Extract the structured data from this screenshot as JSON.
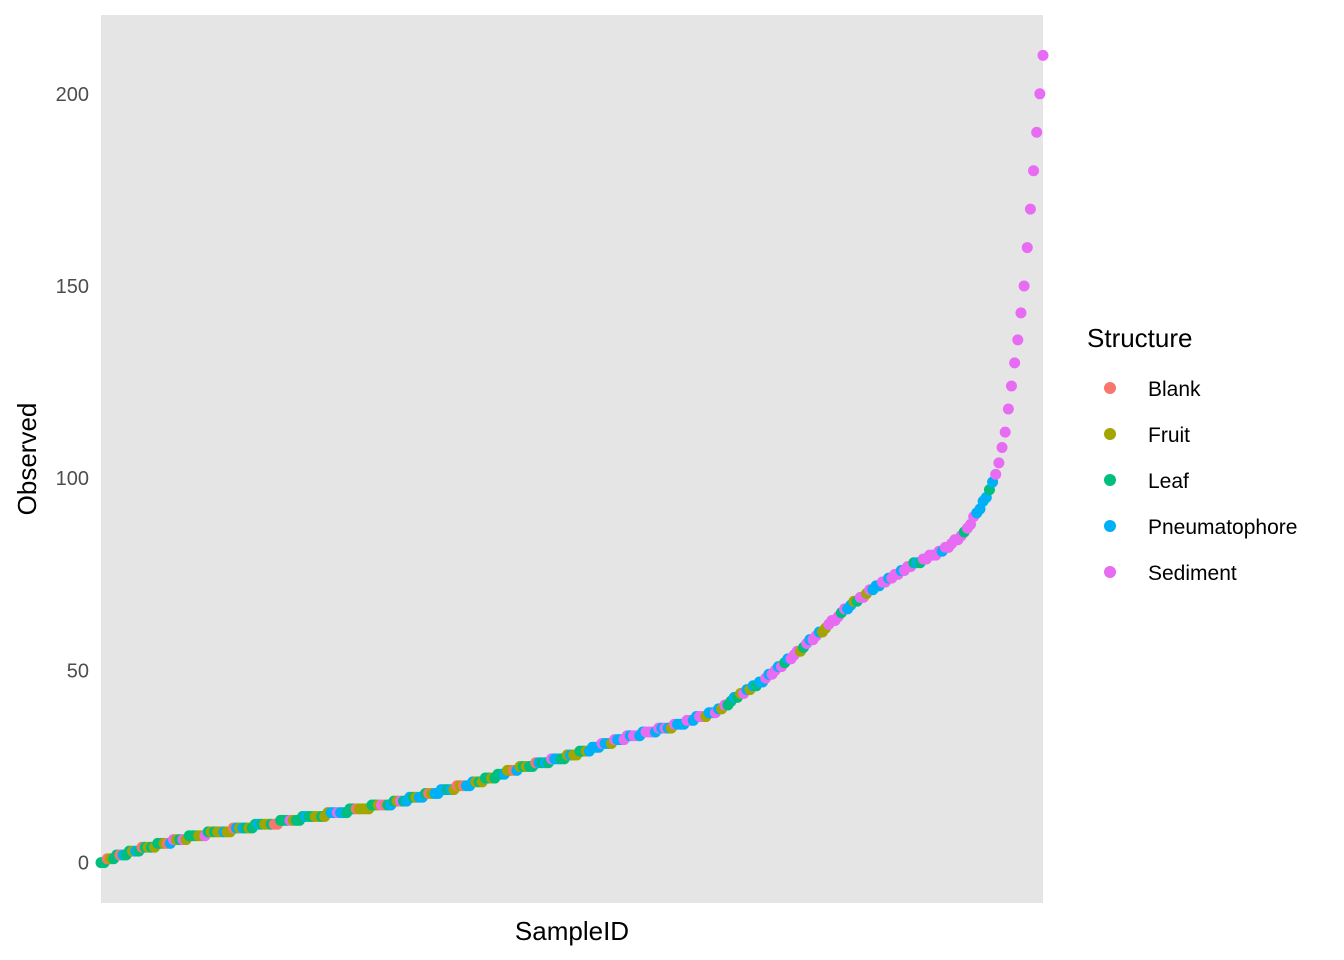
{
  "chart_data": {
    "type": "scatter",
    "title": "",
    "xlabel": "SampleID",
    "ylabel": "Observed",
    "ylim": [
      -10.5,
      220.5
    ],
    "yticks": [
      0,
      50,
      100,
      150,
      200
    ],
    "grid": false,
    "background": "#e5e5e5",
    "legend": {
      "title": "Structure",
      "position": "right",
      "entries": [
        {
          "name": "Blank",
          "color": "#f8766d"
        },
        {
          "name": "Fruit",
          "color": "#a3a500"
        },
        {
          "name": "Leaf",
          "color": "#00bf7d"
        },
        {
          "name": "Pneumatophore",
          "color": "#00b0f6"
        },
        {
          "name": "Sediment",
          "color": "#e76bf3"
        }
      ]
    },
    "n_samples": 300,
    "x_order": "samples sorted by Observed (ascending); x axis has no tick labels",
    "curve": [
      {
        "rank_fraction": 0.0,
        "observed": 0
      },
      {
        "rank_fraction": 0.02,
        "observed": 2
      },
      {
        "rank_fraction": 0.05,
        "observed": 4
      },
      {
        "rank_fraction": 0.1,
        "observed": 7
      },
      {
        "rank_fraction": 0.15,
        "observed": 9
      },
      {
        "rank_fraction": 0.2,
        "observed": 11
      },
      {
        "rank_fraction": 0.25,
        "observed": 13
      },
      {
        "rank_fraction": 0.3,
        "observed": 15
      },
      {
        "rank_fraction": 0.35,
        "observed": 18
      },
      {
        "rank_fraction": 0.4,
        "observed": 21
      },
      {
        "rank_fraction": 0.45,
        "observed": 25
      },
      {
        "rank_fraction": 0.5,
        "observed": 28
      },
      {
        "rank_fraction": 0.55,
        "observed": 32
      },
      {
        "rank_fraction": 0.6,
        "observed": 35
      },
      {
        "rank_fraction": 0.65,
        "observed": 39
      },
      {
        "rank_fraction": 0.7,
        "observed": 47
      },
      {
        "rank_fraction": 0.75,
        "observed": 57
      },
      {
        "rank_fraction": 0.8,
        "observed": 68
      },
      {
        "rank_fraction": 0.85,
        "observed": 76
      },
      {
        "rank_fraction": 0.9,
        "observed": 82
      },
      {
        "rank_fraction": 0.92,
        "observed": 87
      },
      {
        "rank_fraction": 0.94,
        "observed": 95
      },
      {
        "rank_fraction": 0.95,
        "observed": 101
      },
      {
        "rank_fraction": 0.96,
        "observed": 112
      },
      {
        "rank_fraction": 0.97,
        "observed": 130
      },
      {
        "rank_fraction": 0.98,
        "observed": 150
      },
      {
        "rank_fraction": 0.99,
        "observed": 180
      },
      {
        "rank_fraction": 1.0,
        "observed": 210
      }
    ],
    "composition": [
      {
        "from": 0.0,
        "to": 0.3,
        "weights": {
          "Blank": 0.12,
          "Fruit": 0.28,
          "Leaf": 0.35,
          "Pneumatophore": 0.2,
          "Sediment": 0.05
        }
      },
      {
        "from": 0.3,
        "to": 0.5,
        "weights": {
          "Blank": 0.04,
          "Fruit": 0.18,
          "Leaf": 0.3,
          "Pneumatophore": 0.38,
          "Sediment": 0.1
        }
      },
      {
        "from": 0.5,
        "to": 0.7,
        "weights": {
          "Blank": 0.02,
          "Fruit": 0.14,
          "Leaf": 0.18,
          "Pneumatophore": 0.33,
          "Sediment": 0.33
        }
      },
      {
        "from": 0.7,
        "to": 0.85,
        "weights": {
          "Blank": 0.0,
          "Fruit": 0.1,
          "Leaf": 0.1,
          "Pneumatophore": 0.2,
          "Sediment": 0.6
        }
      },
      {
        "from": 0.85,
        "to": 0.92,
        "weights": {
          "Blank": 0.0,
          "Fruit": 0.05,
          "Leaf": 0.1,
          "Pneumatophore": 0.08,
          "Sediment": 0.77
        }
      },
      {
        "from": 0.92,
        "to": 0.95,
        "weights": {
          "Blank": 0.0,
          "Fruit": 0.0,
          "Leaf": 0.3,
          "Pneumatophore": 0.3,
          "Sediment": 0.4
        }
      },
      {
        "from": 0.95,
        "to": 1.0,
        "weights": {
          "Blank": 0.0,
          "Fruit": 0.0,
          "Leaf": 0.0,
          "Pneumatophore": 0.0,
          "Sediment": 1.0
        }
      }
    ]
  }
}
